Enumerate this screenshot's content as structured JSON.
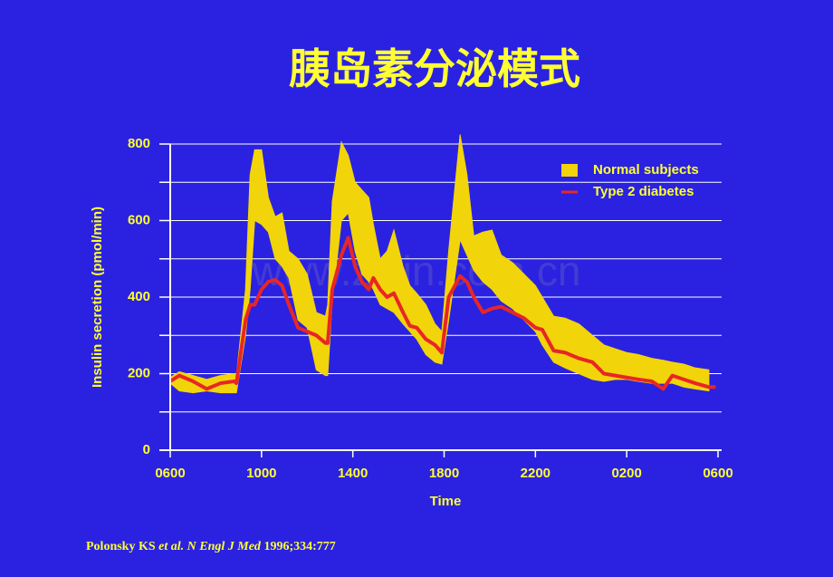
{
  "chart_data": {
    "type": "line",
    "title": "胰岛素分泌模式",
    "xlabel": "Time",
    "ylabel": "Insulin secretion (pmol/min)",
    "watermark": "www.zixin.com.cn",
    "source": {
      "author": "Polonsky KS",
      "etal": "et al.",
      "journal": "N Engl J Med",
      "cite": "1996;334:777"
    },
    "xlim": [
      0,
      24
    ],
    "xticks": [
      {
        "value": 0,
        "label": "0600"
      },
      {
        "value": 4,
        "label": "1000"
      },
      {
        "value": 8,
        "label": "1400"
      },
      {
        "value": 12,
        "label": "1800"
      },
      {
        "value": 16,
        "label": "2200"
      },
      {
        "value": 20,
        "label": "0200"
      },
      {
        "value": 24,
        "label": "0600"
      }
    ],
    "ylim": [
      0,
      800
    ],
    "yticks": [
      0,
      200,
      400,
      600,
      800
    ],
    "yminor": [
      100,
      300,
      500,
      700
    ],
    "grid": true,
    "legend": "upper-right",
    "x": [
      0,
      0.4,
      1.0,
      1.6,
      2.2,
      2.8,
      2.9,
      3.3,
      3.5,
      3.7,
      4.0,
      4.3,
      4.6,
      4.9,
      5.2,
      5.6,
      6.0,
      6.4,
      6.8,
      6.9,
      7.1,
      7.5,
      7.8,
      8.1,
      8.4,
      8.7,
      8.9,
      9.2,
      9.5,
      9.8,
      10.2,
      10.5,
      10.8,
      11.2,
      11.6,
      11.9,
      12.2,
      12.7,
      13.0,
      13.3,
      13.7,
      14.1,
      14.5,
      15.0,
      15.5,
      16.0,
      16.3,
      16.8,
      17.3,
      17.9,
      18.5,
      19.0,
      19.5,
      20.0,
      20.5,
      21.1,
      21.6,
      22.0,
      22.5,
      23.0,
      23.6,
      23.9
    ],
    "series": [
      {
        "name": "Normal subjects",
        "color": "#f2d40a",
        "values": [
          190,
          205,
          195,
          185,
          195,
          200,
          195,
          420,
          720,
          785,
          785,
          660,
          610,
          620,
          520,
          500,
          460,
          360,
          350,
          380,
          650,
          805,
          770,
          700,
          680,
          660,
          590,
          500,
          520,
          575,
          480,
          430,
          410,
          380,
          330,
          310,
          520,
          825,
          720,
          560,
          570,
          575,
          510,
          490,
          460,
          430,
          400,
          350,
          345,
          330,
          300,
          275,
          265,
          255,
          250,
          240,
          235,
          230,
          225,
          215,
          210,
          null
        ],
        "lower": [
          175,
          155,
          150,
          155,
          150,
          150,
          150,
          300,
          420,
          600,
          590,
          570,
          500,
          480,
          450,
          340,
          320,
          210,
          195,
          195,
          390,
          600,
          620,
          520,
          460,
          440,
          420,
          380,
          370,
          360,
          330,
          310,
          290,
          250,
          230,
          225,
          340,
          550,
          510,
          470,
          440,
          420,
          390,
          370,
          340,
          310,
          275,
          230,
          215,
          200,
          185,
          180,
          185,
          185,
          180,
          175,
          175,
          175,
          165,
          160,
          155,
          null
        ]
      },
      {
        "name": "Type 2 diabetes",
        "color": "#e82626",
        "values": [
          180,
          195,
          180,
          160,
          175,
          180,
          175,
          340,
          380,
          380,
          420,
          440,
          445,
          430,
          380,
          320,
          310,
          300,
          280,
          280,
          420,
          510,
          555,
          480,
          440,
          420,
          450,
          420,
          400,
          410,
          360,
          325,
          320,
          290,
          275,
          255,
          400,
          455,
          440,
          400,
          360,
          370,
          375,
          360,
          345,
          320,
          315,
          260,
          255,
          240,
          230,
          200,
          195,
          190,
          185,
          180,
          160,
          195,
          185,
          175,
          165,
          165
        ]
      }
    ]
  }
}
